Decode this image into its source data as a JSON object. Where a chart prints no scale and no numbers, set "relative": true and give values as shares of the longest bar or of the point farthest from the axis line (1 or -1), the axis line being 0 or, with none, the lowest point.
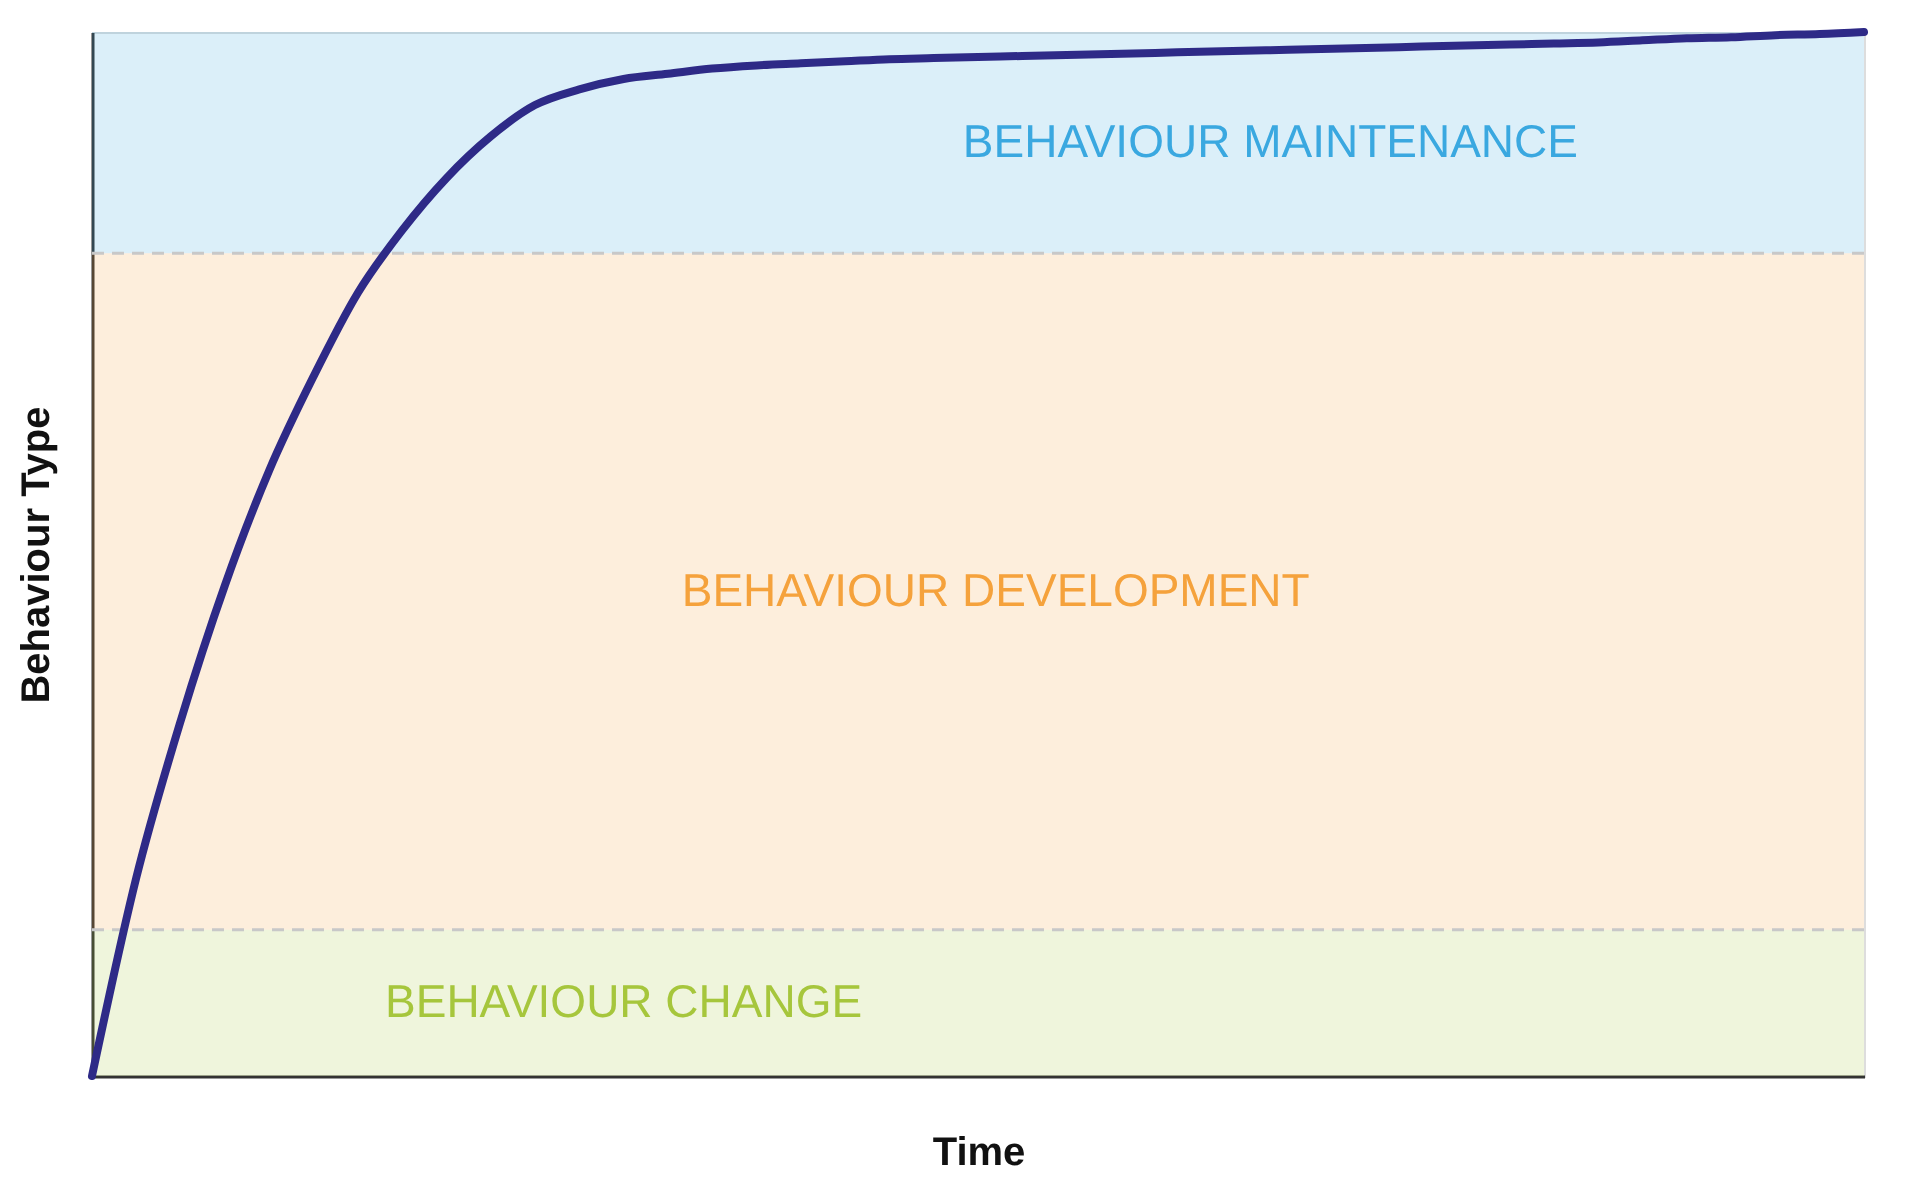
{
  "chart_data": {
    "type": "line",
    "relative": true,
    "xlabel": "Time",
    "ylabel": "Behaviour Type",
    "tick_labels": false,
    "grid": false,
    "marker": "none",
    "line_style": "solid",
    "categories": [
      null,
      null,
      null,
      null,
      null,
      null,
      null,
      null,
      null,
      null,
      null,
      null,
      null,
      null,
      null,
      null,
      null,
      null,
      null,
      null,
      null,
      null,
      null,
      null,
      null,
      null,
      null,
      null,
      null,
      null,
      null,
      null,
      null,
      null,
      null,
      null,
      null,
      null,
      null,
      null,
      null
    ],
    "series": [
      {
        "color": "#2e2a87",
        "values": [
          0,
          0.19,
          0.34,
          0.47,
          0.58,
          0.67,
          0.75,
          0.81,
          0.86,
          0.9,
          0.93,
          0.945,
          0.955,
          0.96,
          0.965,
          0.968,
          0.97,
          0.972,
          0.974,
          0.975,
          0.976,
          0.977,
          0.978,
          0.979,
          0.98,
          0.981,
          0.982,
          0.983,
          0.984,
          0.985,
          0.986,
          0.987,
          0.988,
          0.989,
          0.99,
          0.992,
          0.994,
          0.995,
          0.997,
          0.998,
          1.0
        ]
      }
    ],
    "bands": [
      {
        "axis": "y",
        "from": 0,
        "to": 0.14,
        "label": "BEHAVIOUR CHANGE",
        "color": "#a6c63c"
      },
      {
        "axis": "y",
        "from": 0.14,
        "to": 0.788,
        "label": "BEHAVIOUR DEVELOPMENT",
        "color": "#f5a23c"
      },
      {
        "axis": "y",
        "from": 0.788,
        "to": 1.0,
        "label": "BEHAVIOUR MAINTENANCE",
        "color": "#3aa8e0"
      }
    ],
    "ref_lines": [
      {
        "axis": "y",
        "value": 0.14,
        "color": "#c8c8c8",
        "line_style": "dashed"
      },
      {
        "axis": "y",
        "value": 0.788,
        "color": "#c8c8c8",
        "line_style": "dashed"
      }
    ]
  }
}
